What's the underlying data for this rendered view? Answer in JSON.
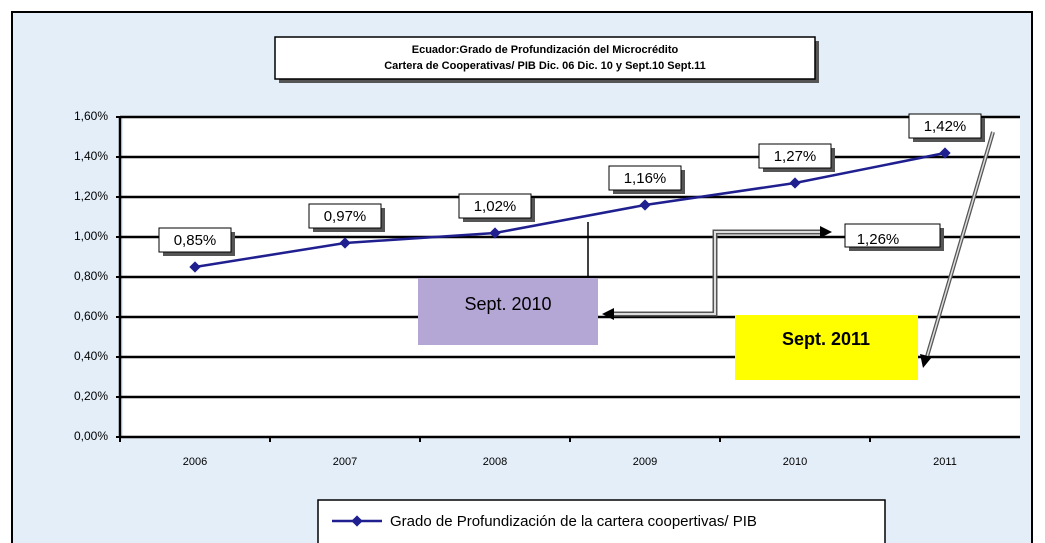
{
  "chart_data": {
    "type": "line",
    "title": "Ecuador:Grado de Profundización del Microcrédito",
    "subtitle": "Cartera de Cooperativas/ PIB Dic. 06  Dic. 10  y  Sept.10   Sept.11",
    "categories": [
      "2006",
      "2007",
      "2008",
      "2009",
      "2010",
      "2011"
    ],
    "series": [
      {
        "name": "Grado de Profundización de la cartera coopertivas/ PIB",
        "color": "#1f1f8f",
        "values": [
          0.85,
          0.97,
          1.02,
          1.16,
          1.27,
          1.42
        ],
        "value_labels": [
          "0,85%",
          "0,97%",
          "1,02%",
          "1,16%",
          "1,27%",
          "1,42%"
        ]
      }
    ],
    "ylim": [
      0,
      1.6
    ],
    "yticks": [
      {
        "value": 0,
        "label": "0,00%"
      },
      {
        "value": 0.2,
        "label": "0,20%"
      },
      {
        "value": 0.4,
        "label": "0,40%"
      },
      {
        "value": 0.6,
        "label": "0,60%"
      },
      {
        "value": 0.8,
        "label": "0,80%"
      },
      {
        "value": 1.0,
        "label": "1,00%"
      },
      {
        "value": 1.2,
        "label": "1,20%"
      },
      {
        "value": 1.4,
        "label": "1,40%"
      },
      {
        "value": 1.6,
        "label": "1,60%"
      }
    ],
    "grid": true,
    "annotations": [
      "1,26%",
      "Sept. 2010",
      "Sept. 2011"
    ]
  }
}
